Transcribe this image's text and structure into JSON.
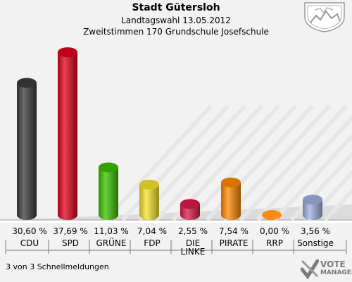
{
  "header": {
    "title": "Stadt Gütersloh",
    "subtitle1": "Landtagswahl 13.05.2012",
    "subtitle2": "Zweitstimmen 170 Grundschule Josefschule"
  },
  "footer": {
    "status": "3 von 3 Schnellmeldungen"
  },
  "brand": {
    "line1": "VOTE",
    "line2": "MANAGER"
  },
  "icons": {
    "crest": "coat-of-arms-icon",
    "brand": "vote-manager-logo-icon"
  },
  "chart_data": {
    "type": "bar",
    "categories": [
      "CDU",
      "SPD",
      "GRÜNE",
      "FDP",
      "DIE LINKE",
      "PIRATE",
      "RRP",
      "Sonstige"
    ],
    "values": [
      30.6,
      37.69,
      11.03,
      7.04,
      2.55,
      7.54,
      0.0,
      3.56
    ],
    "value_labels": [
      "30,60 %",
      "37,69 %",
      "11,03 %",
      "7,04 %",
      "2,55 %",
      "7,54 %",
      "0,00 %",
      "3,56 %"
    ],
    "colors": [
      "#3a3a3a",
      "#e0001a",
      "#3cbf00",
      "#f5e32a",
      "#d81a4a",
      "#ff8800",
      "#ff8a1a",
      "#9fb0e0"
    ],
    "ylim": [
      0,
      40
    ],
    "grid": false,
    "legend": "none"
  }
}
